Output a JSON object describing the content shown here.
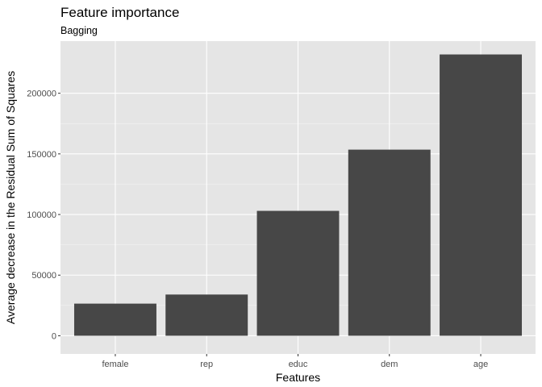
{
  "chart_data": {
    "type": "bar",
    "title": "Feature importance",
    "subtitle": "Bagging",
    "xlabel": "Features",
    "ylabel": "Average decrease in the Residual Sum of Squares",
    "categories": [
      "female",
      "rep",
      "educ",
      "dem",
      "age"
    ],
    "values": [
      26500,
      34000,
      103000,
      153500,
      232000
    ],
    "ylim": [
      -15000,
      243000
    ],
    "yticks": [
      0,
      50000,
      100000,
      150000,
      200000
    ],
    "ytick_labels": [
      "0",
      "50000",
      "100000",
      "150000",
      "200000"
    ],
    "grid": true,
    "legend": "none"
  },
  "colors": {
    "panel_background": "#e5e5e5",
    "grid_major": "#ffffff",
    "grid_minor": "#f2f2f2",
    "bar_fill": "#474747",
    "tick_label": "#4d4d4d"
  }
}
